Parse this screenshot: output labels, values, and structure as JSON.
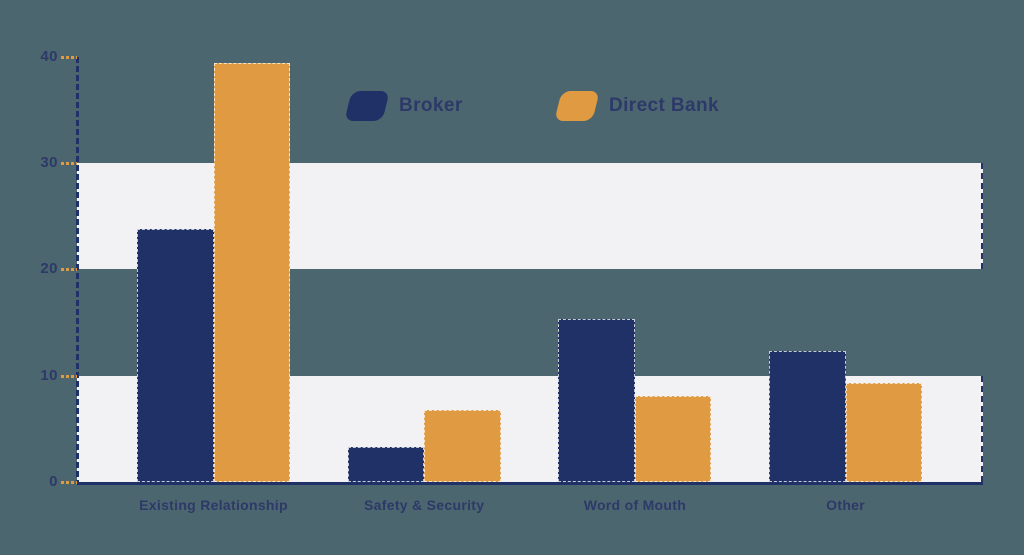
{
  "colors": {
    "background": "#4c666f",
    "navy": "#203168",
    "orange": "#df9a42",
    "band": "#f2f2f4",
    "text_navy": "#2d3968"
  },
  "legend": {
    "items": [
      {
        "label": "Broker",
        "color": "#203168"
      },
      {
        "label": "Direct Bank",
        "color": "#df9a42"
      }
    ]
  },
  "chart_data": {
    "type": "bar",
    "title": "",
    "xlabel": "",
    "ylabel": "",
    "categories": [
      "Existing Relationship",
      "Safety & Security",
      "Word of Mouth",
      "Other"
    ],
    "series": [
      {
        "name": "Broker",
        "color": "#203168",
        "values": [
          23.8,
          3.3,
          15.3,
          12.3
        ]
      },
      {
        "name": "Direct Bank",
        "color": "#df9a42",
        "values": [
          39.4,
          6.8,
          8.1,
          9.3
        ]
      }
    ],
    "ylim": [
      0,
      40
    ],
    "yticks": [
      0,
      10,
      20,
      30,
      40
    ],
    "grid_bands": [
      [
        0,
        10
      ],
      [
        20,
        30
      ]
    ],
    "grid": "horizontal-bands",
    "legend_position": "top-center"
  }
}
